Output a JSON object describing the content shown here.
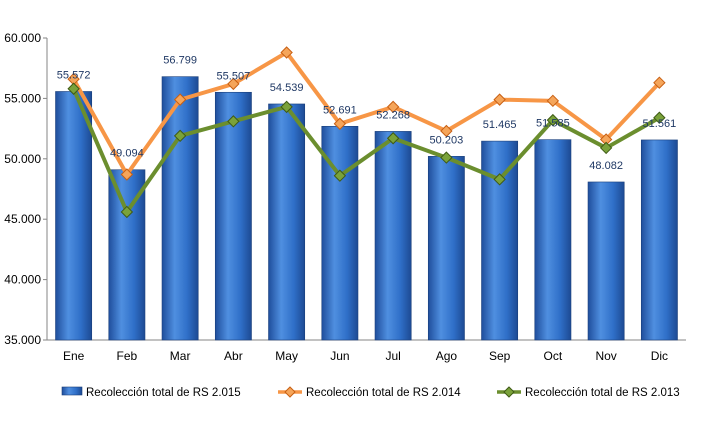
{
  "chart_data": {
    "type": "bar",
    "categories": [
      "Ene",
      "Feb",
      "Mar",
      "Abr",
      "May",
      "Jun",
      "Jul",
      "Ago",
      "Sep",
      "Oct",
      "Nov",
      "Dic"
    ],
    "series": [
      {
        "name": "Recolección total de RS 2.015",
        "type": "bar",
        "color": "#2e6fc8",
        "values": [
          55572,
          49094,
          56799,
          55507,
          54539,
          52691,
          52268,
          50203,
          51465,
          51585,
          48082,
          51561
        ],
        "labels": [
          "55.572",
          "49.094",
          "56.799",
          "55.507",
          "54.539",
          "52.691",
          "52.268",
          "50.203",
          "51.465",
          "51.585",
          "48.082",
          "51.561"
        ]
      },
      {
        "name": "Recolección total de RS 2.014",
        "type": "line",
        "color": "#f79646",
        "values": [
          56600,
          48700,
          54900,
          56200,
          58800,
          52900,
          54300,
          52300,
          54900,
          54800,
          51600,
          56300
        ]
      },
      {
        "name": "Recolección total de RS 2.013",
        "type": "line",
        "color": "#5f7f2a",
        "values": [
          55800,
          45600,
          51900,
          53100,
          54300,
          48600,
          51700,
          50100,
          48300,
          53200,
          50900,
          53400
        ]
      }
    ],
    "ylim": [
      35000,
      60000
    ],
    "yticks": [
      35000,
      40000,
      45000,
      50000,
      55000,
      60000
    ],
    "ytick_labels": [
      "35.000",
      "40.000",
      "45.000",
      "50.000",
      "55.000",
      "60.000"
    ],
    "grid": false,
    "legend": "bottom"
  }
}
